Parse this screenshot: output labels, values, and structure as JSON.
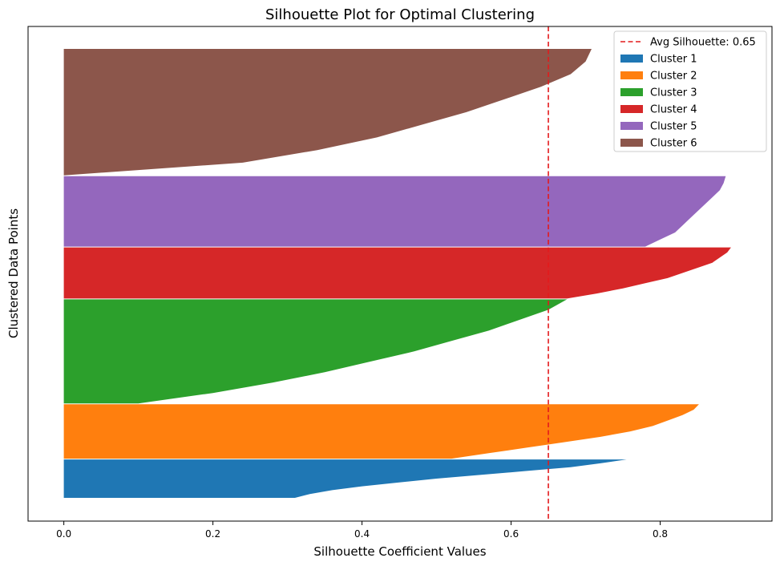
{
  "chart_data": {
    "type": "bar",
    "orientation": "horizontal",
    "title": "Silhouette Plot for Optimal Clustering",
    "xlabel": "Silhouette Coefficient Values",
    "ylabel": "Clustered Data Points",
    "xlim": [
      -0.048,
      0.95
    ],
    "x_ticks": [
      0.0,
      0.2,
      0.4,
      0.6,
      0.8
    ],
    "x_tick_labels": [
      "0.0",
      "0.2",
      "0.4",
      "0.6",
      "0.8"
    ],
    "y_ticks_visible": false,
    "grid": false,
    "legend_position": "top-right",
    "avg_silhouette": {
      "value": 0.65,
      "label": "Avg Silhouette: 0.65",
      "color": "#e41a1c",
      "style": "dashed"
    },
    "clusters": [
      {
        "name": "Cluster 1",
        "color": "#1f77b4",
        "sample_count": 48,
        "silhouette_profile": [
          [
            0.0,
            0.755
          ],
          [
            0.1,
            0.72
          ],
          [
            0.2,
            0.68
          ],
          [
            0.3,
            0.62
          ],
          [
            0.4,
            0.56
          ],
          [
            0.5,
            0.5
          ],
          [
            0.6,
            0.45
          ],
          [
            0.7,
            0.4
          ],
          [
            0.8,
            0.36
          ],
          [
            0.9,
            0.33
          ],
          [
            1.0,
            0.31
          ]
        ]
      },
      {
        "name": "Cluster 2",
        "color": "#ff7f0e",
        "sample_count": 68,
        "silhouette_profile": [
          [
            0.0,
            0.852
          ],
          [
            0.1,
            0.845
          ],
          [
            0.2,
            0.83
          ],
          [
            0.3,
            0.81
          ],
          [
            0.4,
            0.79
          ],
          [
            0.5,
            0.76
          ],
          [
            0.6,
            0.72
          ],
          [
            0.7,
            0.67
          ],
          [
            0.8,
            0.62
          ],
          [
            0.9,
            0.57
          ],
          [
            1.0,
            0.52
          ]
        ]
      },
      {
        "name": "Cluster 3",
        "color": "#2ca02c",
        "sample_count": 130,
        "silhouette_profile": [
          [
            0.0,
            0.675
          ],
          [
            0.1,
            0.65
          ],
          [
            0.2,
            0.61
          ],
          [
            0.3,
            0.57
          ],
          [
            0.4,
            0.52
          ],
          [
            0.5,
            0.47
          ],
          [
            0.6,
            0.41
          ],
          [
            0.7,
            0.35
          ],
          [
            0.8,
            0.28
          ],
          [
            0.9,
            0.2
          ],
          [
            1.0,
            0.1
          ]
        ]
      },
      {
        "name": "Cluster 4",
        "color": "#d62728",
        "sample_count": 64,
        "silhouette_profile": [
          [
            0.0,
            0.895
          ],
          [
            0.1,
            0.89
          ],
          [
            0.2,
            0.88
          ],
          [
            0.3,
            0.87
          ],
          [
            0.4,
            0.85
          ],
          [
            0.5,
            0.83
          ],
          [
            0.6,
            0.81
          ],
          [
            0.7,
            0.78
          ],
          [
            0.8,
            0.75
          ],
          [
            0.9,
            0.715
          ],
          [
            1.0,
            0.675
          ]
        ]
      },
      {
        "name": "Cluster 5",
        "color": "#9467bd",
        "sample_count": 88,
        "silhouette_profile": [
          [
            0.0,
            0.888
          ],
          [
            0.1,
            0.885
          ],
          [
            0.2,
            0.88
          ],
          [
            0.3,
            0.87
          ],
          [
            0.4,
            0.86
          ],
          [
            0.5,
            0.85
          ],
          [
            0.6,
            0.84
          ],
          [
            0.7,
            0.83
          ],
          [
            0.8,
            0.82
          ],
          [
            0.9,
            0.8
          ],
          [
            1.0,
            0.78
          ]
        ]
      },
      {
        "name": "Cluster 6",
        "color": "#8c564b",
        "sample_count": 158,
        "silhouette_profile": [
          [
            0.0,
            0.708
          ],
          [
            0.1,
            0.7
          ],
          [
            0.2,
            0.68
          ],
          [
            0.3,
            0.64
          ],
          [
            0.4,
            0.59
          ],
          [
            0.5,
            0.54
          ],
          [
            0.6,
            0.48
          ],
          [
            0.7,
            0.42
          ],
          [
            0.8,
            0.34
          ],
          [
            0.9,
            0.24
          ],
          [
            1.0,
            0.0
          ]
        ]
      }
    ]
  }
}
